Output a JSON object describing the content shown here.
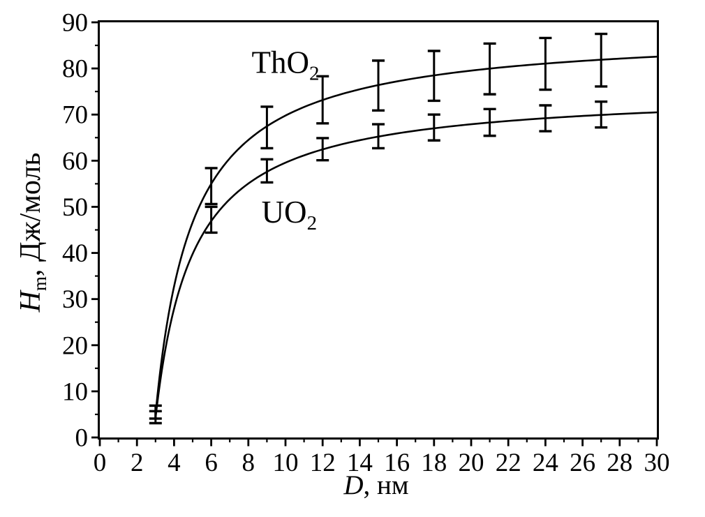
{
  "figure": {
    "background": "#ffffff",
    "ink_color": "#000000"
  },
  "chart_data": {
    "type": "line",
    "title": "",
    "xlabel": {
      "italic": "D",
      "rest": ", нм"
    },
    "ylabel": {
      "italic": "H",
      "sub": "m",
      "rest": ", Дж/моль"
    },
    "xlim": [
      0,
      30
    ],
    "ylim": [
      0,
      90
    ],
    "grid": false,
    "legend_position": "inline-annotations",
    "x_ticks": {
      "major": [
        0,
        2,
        4,
        6,
        8,
        10,
        12,
        14,
        16,
        18,
        20,
        22,
        24,
        26,
        28,
        30
      ],
      "major_labels": [
        "0",
        "2",
        "4",
        "6",
        "8",
        "10",
        "12",
        "14",
        "16",
        "18",
        "20",
        "22",
        "24",
        "26",
        "28",
        "30"
      ],
      "minor": [
        1,
        3,
        5,
        7,
        9,
        11,
        13,
        15,
        17,
        19,
        21,
        23,
        25,
        27,
        29
      ]
    },
    "y_ticks": {
      "major": [
        0,
        10,
        20,
        30,
        40,
        50,
        60,
        70,
        80,
        90
      ],
      "major_labels": [
        "0",
        "10",
        "20",
        "30",
        "40",
        "50",
        "60",
        "70",
        "80",
        "90"
      ],
      "minor": [
        5,
        15,
        25,
        35,
        45,
        55,
        65,
        75,
        85
      ]
    },
    "series": [
      {
        "name": "ThO2",
        "label": {
          "text": "ThO",
          "sub": "2"
        },
        "color": "#000000",
        "x": [
          3,
          6,
          9,
          12,
          15,
          18,
          21,
          24,
          27
        ],
        "y": [
          5.5,
          54.5,
          67.2,
          73.2,
          76.3,
          78.4,
          79.9,
          81.0,
          81.8
        ],
        "y_err": [
          1.4,
          3.9,
          4.5,
          5.1,
          5.4,
          5.4,
          5.5,
          5.6,
          5.7
        ],
        "curve_model": {
          "form": "A*(1-B/(x-1))",
          "A": 88.3,
          "B": 1.887,
          "x_range": [
            3,
            30
          ]
        },
        "annotation_pos": {
          "x": 10.0,
          "y": 79.0
        }
      },
      {
        "name": "UO2",
        "label": {
          "text": "UO",
          "sub": "2"
        },
        "color": "#000000",
        "x": [
          3,
          6,
          9,
          12,
          15,
          18,
          21,
          24,
          27
        ],
        "y": [
          4.4,
          47.2,
          57.8,
          62.5,
          65.3,
          67.2,
          68.3,
          69.2,
          70.0
        ],
        "y_err": [
          1.3,
          2.8,
          2.5,
          2.4,
          2.6,
          2.8,
          2.9,
          2.8,
          2.8
        ],
        "curve_model": {
          "form": "A*(1-B/(x-1))",
          "A": 75.4,
          "B": 1.889,
          "x_range": [
            3,
            30
          ]
        },
        "annotation_pos": {
          "x": 10.2,
          "y": 46.6
        }
      }
    ]
  }
}
